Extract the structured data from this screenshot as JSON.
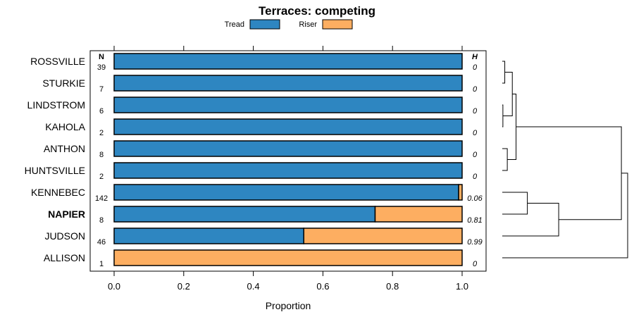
{
  "chart_data": {
    "type": "bar",
    "orientation": "horizontal",
    "stacked": true,
    "title": "Terraces: competing",
    "xlabel": "Proportion",
    "ylabel": "",
    "xlim": [
      0,
      1
    ],
    "xticks": [
      0.0,
      0.2,
      0.4,
      0.6,
      0.8,
      1.0
    ],
    "xtick_labels": [
      "0.0",
      "0.2",
      "0.4",
      "0.6",
      "0.8",
      "1.0"
    ],
    "n_header": "N",
    "h_header": "H",
    "legend": {
      "position": "top",
      "entries": [
        {
          "name": "Tread",
          "color": "#2e86c1"
        },
        {
          "name": "Riser",
          "color": "#fdae61"
        }
      ]
    },
    "categories": [
      "ROSSVILLE",
      "STURKIE",
      "LINDSTROM",
      "KAHOLA",
      "ANTHON",
      "HUNTSVILLE",
      "KENNEBEC",
      "NAPIER",
      "JUDSON",
      "ALLISON"
    ],
    "highlighted_category": "NAPIER",
    "n": [
      "39",
      "7",
      "6",
      "2",
      "8",
      "2",
      "142",
      "8",
      "46",
      "1"
    ],
    "h": [
      "0",
      "0",
      "0",
      "0",
      "0",
      "0",
      "0.06",
      "0.81",
      "0.99",
      "0"
    ],
    "series": [
      {
        "name": "Tread",
        "color": "#2e86c1",
        "values": [
          1,
          1,
          1,
          1,
          1,
          1,
          0.99,
          0.75,
          0.545,
          0
        ]
      },
      {
        "name": "Riser",
        "color": "#fdae61",
        "values": [
          0,
          0,
          0,
          0,
          0,
          0,
          0.01,
          0.25,
          0.455,
          1
        ]
      }
    ],
    "dendrogram": {
      "merges": [
        {
          "a": "ROSSVILLE",
          "b": "STURKIE",
          "height": 0.02
        },
        {
          "a": "LINDSTROM",
          "b": "KAHOLA",
          "height": 0.005
        },
        {
          "a": "ANTHON",
          "b": "HUNTSVILLE",
          "height": 0.04
        },
        {
          "a": "m0",
          "b": "m1",
          "height": 0.08
        },
        {
          "a": "m3",
          "b": "m2",
          "height": 0.11
        },
        {
          "a": "KENNEBEC",
          "b": "NAPIER",
          "height": 0.2
        },
        {
          "a": "m5",
          "b": "JUDSON",
          "height": 0.45
        },
        {
          "a": "m4",
          "b": "m6",
          "height": 0.95
        },
        {
          "a": "m7",
          "b": "ALLISON",
          "height": 1.0
        }
      ]
    }
  }
}
